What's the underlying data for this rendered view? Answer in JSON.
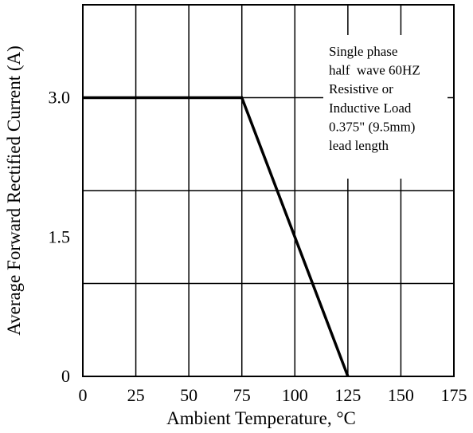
{
  "chart_data": {
    "type": "line",
    "xlabel": "Ambient Temperature, °C",
    "ylabel": "Average Forward Rectified Current (A)",
    "xlim": [
      0,
      175
    ],
    "ylim": [
      0,
      4
    ],
    "x_ticks": [
      0,
      25,
      50,
      75,
      100,
      125,
      150,
      175
    ],
    "x_tick_labels": [
      "0",
      "25",
      "50",
      "75",
      "100",
      "125",
      "150",
      "175"
    ],
    "y_gridlines": [
      0,
      1,
      2,
      3,
      4
    ],
    "y_tick_labels": [
      {
        "value": 0,
        "label": "0"
      },
      {
        "value": 1.5,
        "label": "1.5"
      },
      {
        "value": 3.0,
        "label": "3.0"
      }
    ],
    "grid": true,
    "series": [
      {
        "x": [
          0,
          75,
          125
        ],
        "y": [
          3.0,
          3.0,
          0
        ]
      }
    ],
    "annotation": {
      "lines": [
        "Single phase",
        "half  wave 60HZ",
        "Resistive or",
        "Inductive Load",
        "0.375\" (9.5mm)",
        "lead length"
      ]
    },
    "colors": {
      "line": "#000000",
      "grid": "#000000",
      "background": "#ffffff"
    }
  }
}
